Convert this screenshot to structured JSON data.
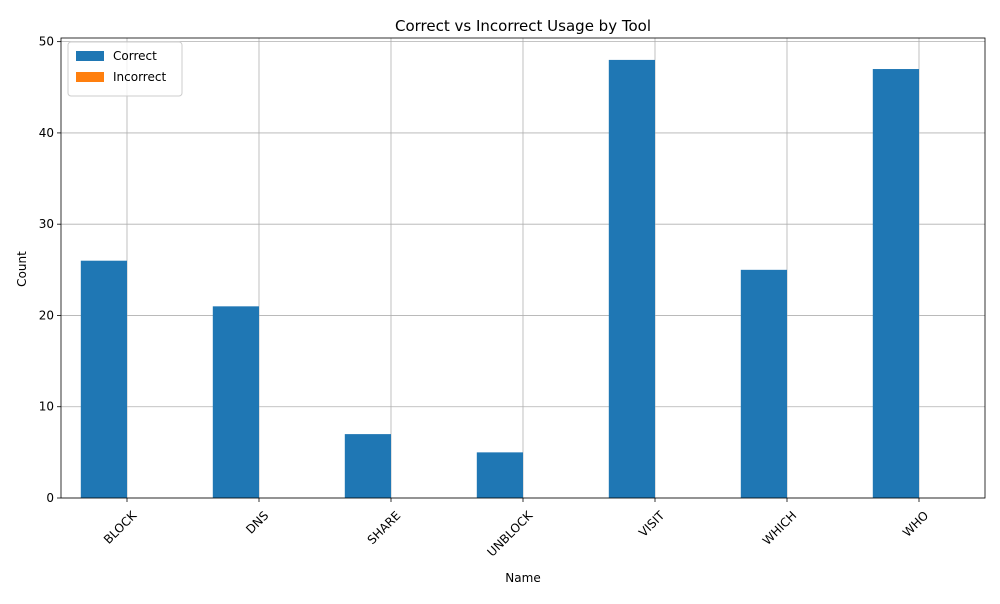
{
  "chart_data": {
    "type": "bar",
    "title": "Correct vs Incorrect Usage by Tool",
    "xlabel": "Name",
    "ylabel": "Count",
    "categories": [
      "BLOCK",
      "DNS",
      "SHARE",
      "UNBLOCK",
      "VISIT",
      "WHICH",
      "WHO"
    ],
    "series": [
      {
        "name": "Correct",
        "values": [
          26,
          21,
          7,
          5,
          48,
          25,
          47
        ],
        "color": "#1f77b4"
      },
      {
        "name": "Incorrect",
        "values": [
          0,
          0,
          0,
          0,
          0,
          0,
          0
        ],
        "color": "#ff7f0e"
      }
    ],
    "ylim": [
      0,
      50.4
    ],
    "yticks": [
      0,
      10,
      20,
      30,
      40,
      50
    ],
    "grid": true,
    "legend_position": "top-left",
    "xtick_rotation": 45
  }
}
